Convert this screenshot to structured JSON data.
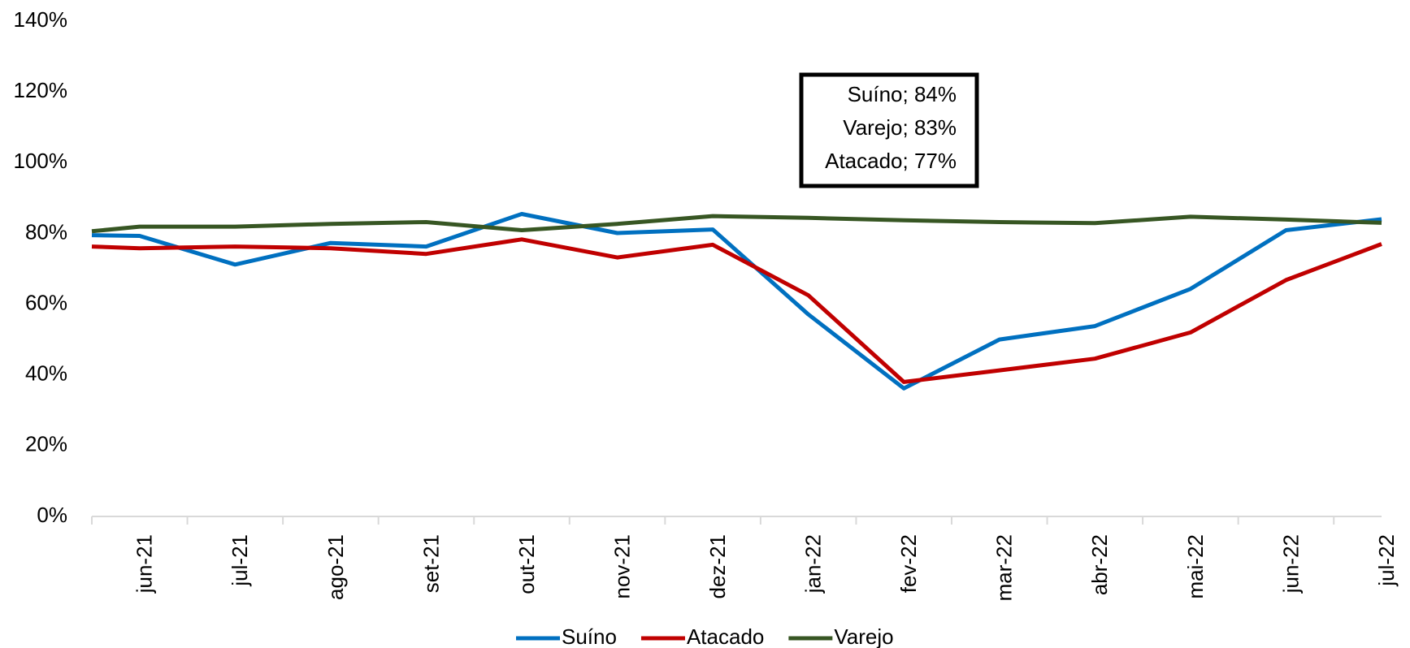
{
  "chart_data": {
    "type": "line",
    "categories": [
      null,
      "jun-21",
      "jul-21",
      "ago-21",
      "set-21",
      "out-21",
      "nov-21",
      "dez-21",
      "jan-22",
      "fev-22",
      "mar-22",
      "abr-22",
      "mai-22",
      "jun-22",
      "jul-22"
    ],
    "series": [
      {
        "name": "Suíno",
        "color": "#0070c0",
        "values": [
          79.5,
          79.3,
          71.2,
          77.3,
          76.3,
          85.5,
          80.1,
          81.1,
          57.1,
          36.2,
          50,
          53.8,
          64.3,
          80.9,
          84
        ]
      },
      {
        "name": "Atacado",
        "color": "#c00000",
        "values": [
          76.3,
          75.8,
          76.3,
          75.8,
          74.2,
          78.3,
          73.2,
          76.8,
          62.5,
          38,
          41.3,
          44.6,
          52,
          66.8,
          77
        ]
      },
      {
        "name": "Varejo",
        "color": "#375623",
        "values": [
          80.6,
          81.9,
          81.9,
          82.7,
          83.2,
          80.9,
          82.7,
          84.9,
          84.4,
          83.7,
          83.2,
          82.9,
          84.7,
          83.9,
          83
        ]
      }
    ],
    "ylim": [
      0,
      140
    ],
    "yticks": [
      {
        "value": 0,
        "label": "0%"
      },
      {
        "value": 20,
        "label": "20%"
      },
      {
        "value": 40,
        "label": "40%"
      },
      {
        "value": 60,
        "label": "60%"
      },
      {
        "value": 80,
        "label": "80%"
      },
      {
        "value": 100,
        "label": "100%"
      },
      {
        "value": 120,
        "label": "120%"
      },
      {
        "value": 140,
        "label": "140%"
      }
    ],
    "annotations": [
      "Suíno; 84%",
      "Varejo; 83%",
      "Atacado; 77%"
    ],
    "legend": "bottom"
  }
}
